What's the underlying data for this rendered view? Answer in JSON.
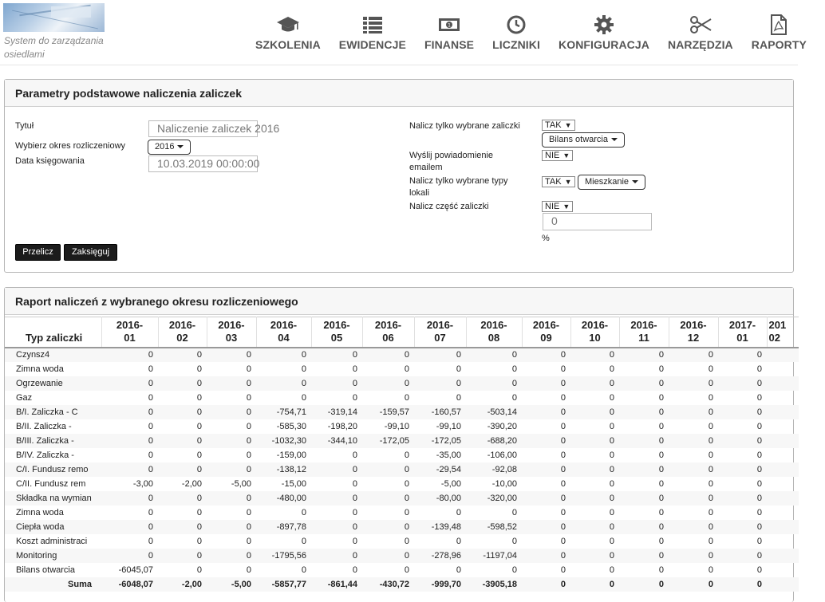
{
  "app": {
    "logo_text": "System do zarządzania osiedlami"
  },
  "nav": [
    {
      "label": "SZKOLENIA",
      "icon": "graduation-cap-icon"
    },
    {
      "label": "EWIDENCJE",
      "icon": "list-icon"
    },
    {
      "label": "FINANSE",
      "icon": "money-icon"
    },
    {
      "label": "LICZNIKI",
      "icon": "clock-icon"
    },
    {
      "label": "KONFIGURACJA",
      "icon": "gear-icon"
    },
    {
      "label": "NARZĘDZIA",
      "icon": "scissors-icon"
    },
    {
      "label": "RAPORTY",
      "icon": "pdf-file-icon"
    }
  ],
  "params": {
    "title": "Parametry podstawowe naliczenia zaliczek",
    "tytul_label": "Tytuł",
    "tytul_value": "Naliczenie zaliczek 2016",
    "okres_label": "Wybierz okres rozliczeniowy",
    "okres_value": "2016",
    "data_label": "Data księgowania",
    "data_value": "10.03.2019 00:00:00",
    "nalicz_wybrane_label": "Nalicz tylko wybrane zaliczki",
    "nalicz_wybrane_value": "TAK",
    "bilans_value": "Bilans otwarcia",
    "wyslij_label_1": "Wyślij powiadomienie",
    "wyslij_label_2": "emailem",
    "wyslij_value": "NIE",
    "typy_label_1": "Nalicz tylko wybrane typy",
    "typy_label_2": "lokali",
    "typy_value": "TAK",
    "mieszkanie_value": "Mieszkanie",
    "czesc_label": "Nalicz część zaliczki",
    "czesc_value": "NIE",
    "procent_value": "0",
    "procent_unit": "%",
    "przelicz_label": "Przelicz",
    "zaksieguj_label": "Zaksięguj"
  },
  "report": {
    "title": "Raport naliczeń z wybranego okresu rozliczeniowego",
    "first_col": "Typ zaliczki",
    "columns": [
      [
        "2016-",
        "01"
      ],
      [
        "2016-",
        "02"
      ],
      [
        "2016-",
        "03"
      ],
      [
        "2016-",
        "04"
      ],
      [
        "2016-",
        "05"
      ],
      [
        "2016-",
        "06"
      ],
      [
        "2016-",
        "07"
      ],
      [
        "2016-",
        "08"
      ],
      [
        "2016-",
        "09"
      ],
      [
        "2016-",
        "10"
      ],
      [
        "2016-",
        "11"
      ],
      [
        "2016-",
        "12"
      ],
      [
        "2017-",
        "01"
      ],
      [
        "201",
        "02"
      ]
    ],
    "rows": [
      {
        "name": "Czynsz4",
        "values": [
          "0",
          "0",
          "0",
          "0",
          "0",
          "0",
          "0",
          "0",
          "0",
          "0",
          "0",
          "0",
          "0",
          ""
        ]
      },
      {
        "name": "Zimna woda",
        "values": [
          "0",
          "0",
          "0",
          "0",
          "0",
          "0",
          "0",
          "0",
          "0",
          "0",
          "0",
          "0",
          "0",
          ""
        ]
      },
      {
        "name": "Ogrzewanie",
        "values": [
          "0",
          "0",
          "0",
          "0",
          "0",
          "0",
          "0",
          "0",
          "0",
          "0",
          "0",
          "0",
          "0",
          ""
        ]
      },
      {
        "name": "Gaz",
        "values": [
          "0",
          "0",
          "0",
          "0",
          "0",
          "0",
          "0",
          "0",
          "0",
          "0",
          "0",
          "0",
          "0",
          ""
        ]
      },
      {
        "name": "B/I. Zaliczka - C",
        "values": [
          "0",
          "0",
          "0",
          "-754,71",
          "-319,14",
          "-159,57",
          "-160,57",
          "-503,14",
          "0",
          "0",
          "0",
          "0",
          "0",
          ""
        ]
      },
      {
        "name": "B/II. Zaliczka -",
        "values": [
          "0",
          "0",
          "0",
          "-585,30",
          "-198,20",
          "-99,10",
          "-99,10",
          "-390,20",
          "0",
          "0",
          "0",
          "0",
          "0",
          ""
        ]
      },
      {
        "name": "B/III. Zaliczka -",
        "values": [
          "0",
          "0",
          "0",
          "-1032,30",
          "-344,10",
          "-172,05",
          "-172,05",
          "-688,20",
          "0",
          "0",
          "0",
          "0",
          "0",
          ""
        ]
      },
      {
        "name": "B/IV. Zaliczka -",
        "values": [
          "0",
          "0",
          "0",
          "-159,00",
          "0",
          "0",
          "-35,00",
          "-106,00",
          "0",
          "0",
          "0",
          "0",
          "0",
          ""
        ]
      },
      {
        "name": "C/I. Fundusz remo",
        "values": [
          "0",
          "0",
          "0",
          "-138,12",
          "0",
          "0",
          "-29,54",
          "-92,08",
          "0",
          "0",
          "0",
          "0",
          "0",
          ""
        ]
      },
      {
        "name": "C/II. Fundusz rem",
        "values": [
          "-3,00",
          "-2,00",
          "-5,00",
          "-15,00",
          "0",
          "0",
          "-5,00",
          "-10,00",
          "0",
          "0",
          "0",
          "0",
          "0",
          ""
        ]
      },
      {
        "name": "Składka na wymian",
        "values": [
          "0",
          "0",
          "0",
          "-480,00",
          "0",
          "0",
          "-80,00",
          "-320,00",
          "0",
          "0",
          "0",
          "0",
          "0",
          ""
        ]
      },
      {
        "name": "Zimna woda",
        "values": [
          "0",
          "0",
          "0",
          "0",
          "0",
          "0",
          "0",
          "0",
          "0",
          "0",
          "0",
          "0",
          "0",
          ""
        ]
      },
      {
        "name": "Ciepła woda",
        "values": [
          "0",
          "0",
          "0",
          "-897,78",
          "0",
          "0",
          "-139,48",
          "-598,52",
          "0",
          "0",
          "0",
          "0",
          "0",
          ""
        ]
      },
      {
        "name": "Koszt administraci",
        "values": [
          "0",
          "0",
          "0",
          "0",
          "0",
          "0",
          "0",
          "0",
          "0",
          "0",
          "0",
          "0",
          "0",
          ""
        ]
      },
      {
        "name": "Monitoring",
        "values": [
          "0",
          "0",
          "0",
          "-1795,56",
          "0",
          "0",
          "-278,96",
          "-1197,04",
          "0",
          "0",
          "0",
          "0",
          "0",
          ""
        ]
      },
      {
        "name": "Bilans otwarcia",
        "values": [
          "-6045,07",
          "0",
          "0",
          "0",
          "0",
          "0",
          "0",
          "0",
          "0",
          "0",
          "0",
          "0",
          "0",
          ""
        ]
      }
    ],
    "sum": {
      "name": "Suma",
      "values": [
        "-6048,07",
        "-2,00",
        "-5,00",
        "-5857,77",
        "-861,44",
        "-430,72",
        "-999,70",
        "-3905,18",
        "0",
        "0",
        "0",
        "0",
        "0",
        ""
      ]
    }
  }
}
